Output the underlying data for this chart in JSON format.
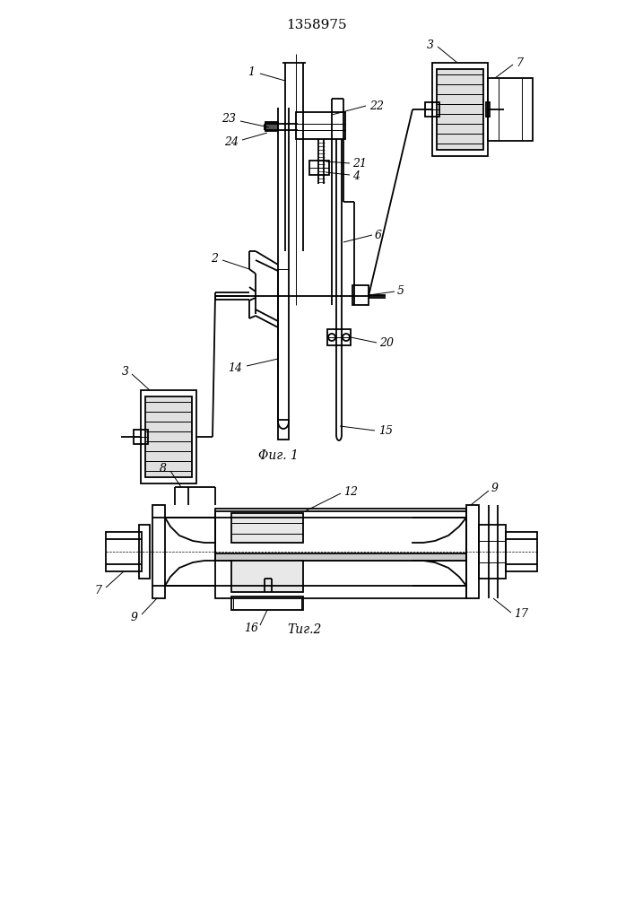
{
  "title": "1358975",
  "fig1_caption": "Φиг. 1",
  "fig2_caption": "Τиг.2",
  "bg_color": "#ffffff",
  "lc": "#000000",
  "lw": 1.3,
  "tlw": 0.7,
  "fs": 9
}
